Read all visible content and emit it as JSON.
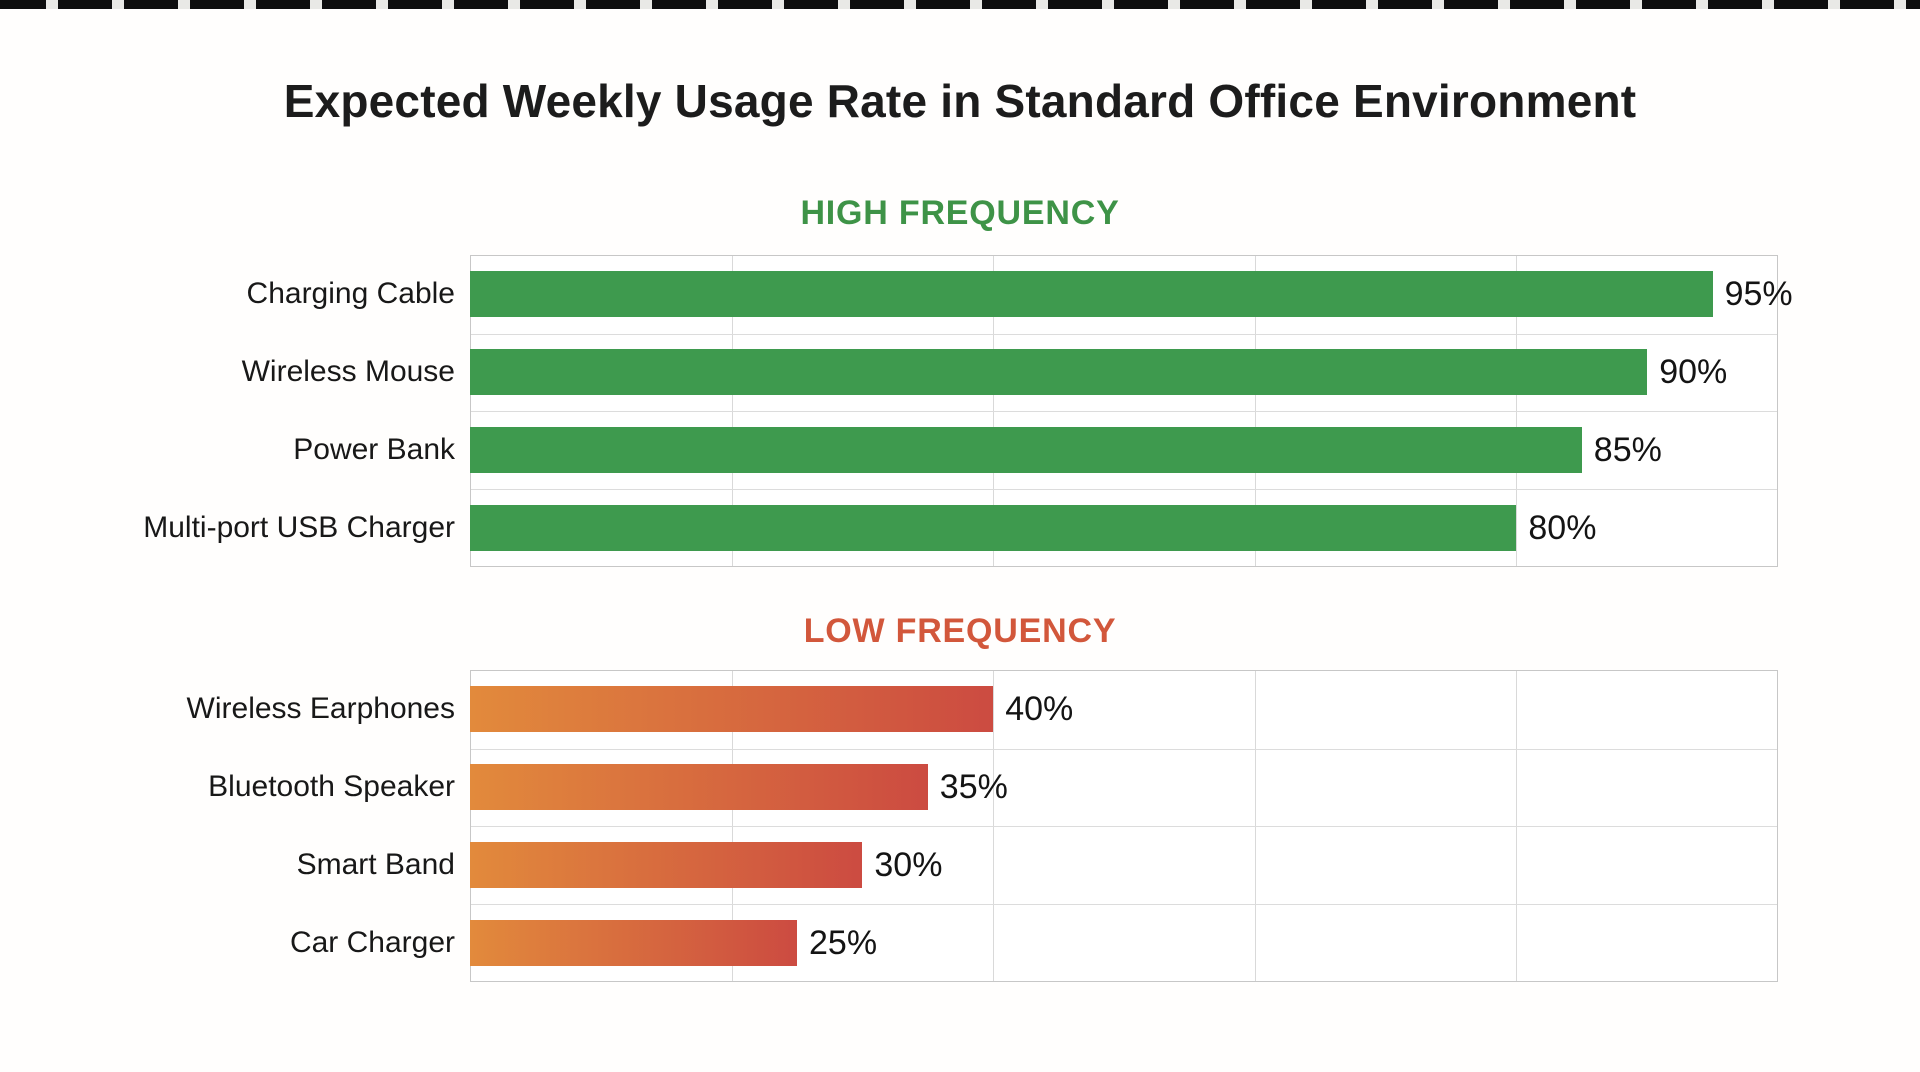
{
  "page": {
    "title": "Expected Weekly Usage Rate in Standard Office Environment"
  },
  "colors": {
    "high_bar": "#3e9a4e",
    "high_title": "#3e9347",
    "low_bar_gradient_start": "#e28a3c",
    "low_bar_gradient_end": "#cc4b41",
    "low_title": "#d2573b",
    "gridline": "#d9d9d9",
    "plot_border": "#c7c7c7"
  },
  "chart_data": [
    {
      "type": "bar",
      "orientation": "horizontal",
      "title": "HIGH FREQUENCY",
      "title_color": "#3e9347",
      "categories": [
        "Charging Cable",
        "Wireless Mouse",
        "Power Bank",
        "Multi-port USB Charger"
      ],
      "values": [
        95,
        90,
        85,
        80
      ],
      "value_labels": [
        "95%",
        "90%",
        "85%",
        "80%"
      ],
      "xlim": [
        0,
        100
      ],
      "gridline_step": 20,
      "grid": true,
      "legend": false,
      "bar_color": "#3e9a4e"
    },
    {
      "type": "bar",
      "orientation": "horizontal",
      "title": "LOW FREQUENCY",
      "title_color": "#d2573b",
      "categories": [
        "Wireless Earphones",
        "Bluetooth Speaker",
        "Smart Band",
        "Car Charger"
      ],
      "values": [
        40,
        35,
        30,
        25
      ],
      "value_labels": [
        "40%",
        "35%",
        "30%",
        "25%"
      ],
      "xlim": [
        0,
        100
      ],
      "gridline_step": 20,
      "grid": true,
      "legend": false,
      "bar_gradient": [
        "#e28a3c",
        "#cc4b41"
      ]
    }
  ]
}
